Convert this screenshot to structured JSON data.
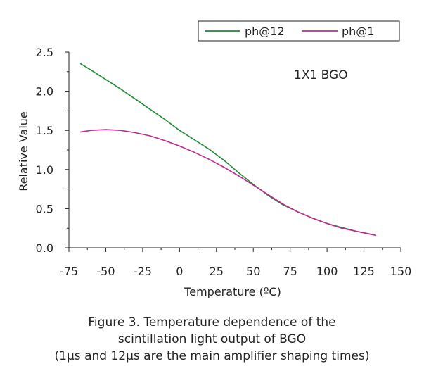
{
  "chart_data": {
    "type": "line",
    "xlabel": "Temperature (ºC)",
    "ylabel": "Relative Value",
    "annotation": "1X1 BGO",
    "xlim": [
      -75,
      150
    ],
    "ylim": [
      0,
      2.5
    ],
    "xticks": [
      -75,
      -50,
      -25,
      0,
      25,
      50,
      75,
      100,
      125,
      150
    ],
    "yticks": [
      0.0,
      0.5,
      1.0,
      1.5,
      2.0,
      2.5
    ],
    "ytick_labels": [
      "0.0",
      "0.5",
      "1.0",
      "1.5",
      "2.0",
      "2.5"
    ],
    "legend_position": "top-right",
    "grid": false,
    "series": [
      {
        "name": "ph@12",
        "color": "#1f8a3a",
        "x": [
          -67,
          -60,
          -50,
          -40,
          -30,
          -20,
          -10,
          0,
          10,
          20,
          30,
          40,
          50,
          60,
          70,
          80,
          90,
          100,
          110,
          120,
          133
        ],
        "y": [
          2.35,
          2.27,
          2.15,
          2.03,
          1.9,
          1.77,
          1.64,
          1.5,
          1.38,
          1.26,
          1.12,
          0.96,
          0.81,
          0.67,
          0.55,
          0.46,
          0.38,
          0.31,
          0.26,
          0.21,
          0.16
        ]
      },
      {
        "name": "ph@1",
        "color": "#c2288e",
        "x": [
          -67,
          -60,
          -50,
          -40,
          -30,
          -20,
          -10,
          0,
          10,
          20,
          30,
          40,
          50,
          60,
          70,
          80,
          90,
          100,
          110,
          120,
          133
        ],
        "y": [
          1.48,
          1.5,
          1.51,
          1.5,
          1.47,
          1.43,
          1.37,
          1.3,
          1.22,
          1.13,
          1.03,
          0.92,
          0.8,
          0.68,
          0.56,
          0.46,
          0.38,
          0.31,
          0.25,
          0.21,
          0.16
        ]
      }
    ]
  },
  "caption": {
    "line1": "Figure 3. Temperature dependence of the",
    "line2": "scintillation light output of BGO",
    "line3": "(1μs and 12μs are the main amplifier shaping times)"
  }
}
